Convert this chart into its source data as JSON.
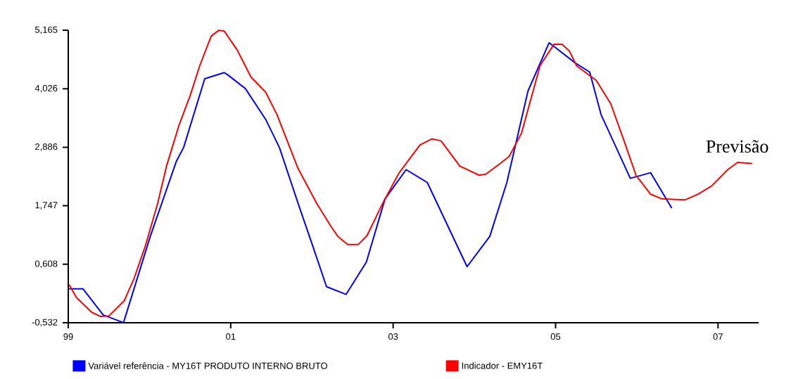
{
  "chart_data": {
    "type": "line",
    "xlim": [
      1999,
      2007.5
    ],
    "ylim": [
      -0.532,
      5.165
    ],
    "xticks": [
      {
        "value": 1999,
        "label": "99"
      },
      {
        "value": 2001,
        "label": "01"
      },
      {
        "value": 2003,
        "label": "03"
      },
      {
        "value": 2005,
        "label": "05"
      },
      {
        "value": 2007,
        "label": "07"
      }
    ],
    "yticks": [
      {
        "value": -0.532,
        "label": "-0,532"
      },
      {
        "value": 0.608,
        "label": "0,608"
      },
      {
        "value": 1.747,
        "label": "1,747"
      },
      {
        "value": 2.886,
        "label": "2,886"
      },
      {
        "value": 4.026,
        "label": "4,026"
      },
      {
        "value": 5.165,
        "label": "5,165"
      }
    ],
    "legend": "bottom",
    "annotations": [
      "Previsão"
    ],
    "series": [
      {
        "name": "Variável referência - MY16T    PRODUTO INTERNO BRUTO",
        "color": "#0000ff",
        "x": [
          1999.01,
          1999.18,
          1999.43,
          1999.68,
          2000.01,
          2000.33,
          2000.42,
          2000.68,
          2000.92,
          2000.96,
          2001.18,
          2001.43,
          2001.6,
          2001.83,
          2002.0,
          2002.18,
          2002.42,
          2002.67,
          2002.9,
          2003.16,
          2003.42,
          2003.91,
          2004.19,
          2004.4,
          2004.66,
          2004.92,
          2004.98,
          2005.24,
          2005.42,
          2005.56,
          2005.68,
          2005.92,
          2006.17,
          2006.43
        ],
        "values": [
          0.13,
          0.13,
          -0.38,
          -0.53,
          1.15,
          2.61,
          2.88,
          4.22,
          4.34,
          4.3,
          4.03,
          3.43,
          2.88,
          1.79,
          1.01,
          0.17,
          0.02,
          0.65,
          1.88,
          2.45,
          2.2,
          0.56,
          1.15,
          2.2,
          3.98,
          4.92,
          4.85,
          4.53,
          4.35,
          3.52,
          3.11,
          2.28,
          2.39,
          1.7
        ]
      },
      {
        "name": "Indicador - EMY16T",
        "color": "#ff0000",
        "x": [
          1999.01,
          1999.1,
          1999.29,
          1999.4,
          1999.5,
          1999.69,
          1999.81,
          1999.95,
          2000.1,
          2000.21,
          2000.36,
          2000.5,
          2000.62,
          2000.76,
          2000.85,
          2000.92,
          2001.08,
          2001.25,
          2001.43,
          2001.57,
          2001.83,
          2002.06,
          2002.24,
          2002.32,
          2002.44,
          2002.57,
          2002.68,
          2002.87,
          2003.07,
          2003.33,
          2003.48,
          2003.59,
          2003.82,
          2004.06,
          2004.14,
          2004.31,
          2004.43,
          2004.58,
          2004.81,
          2004.98,
          2005.08,
          2005.17,
          2005.26,
          2005.5,
          2005.68,
          2005.85,
          2005.99,
          2006.17,
          2006.31,
          2006.59,
          2006.75,
          2006.92,
          2007.12,
          2007.24,
          2007.42
        ],
        "values": [
          0.21,
          -0.04,
          -0.33,
          -0.41,
          -0.4,
          -0.1,
          0.33,
          0.97,
          1.79,
          2.52,
          3.3,
          3.89,
          4.48,
          5.05,
          5.16,
          5.15,
          4.78,
          4.25,
          3.96,
          3.52,
          2.47,
          1.79,
          1.33,
          1.15,
          0.99,
          0.99,
          1.17,
          1.79,
          2.38,
          2.93,
          3.05,
          3.01,
          2.52,
          2.34,
          2.36,
          2.56,
          2.71,
          3.16,
          4.48,
          4.89,
          4.89,
          4.76,
          4.47,
          4.19,
          3.73,
          2.98,
          2.34,
          1.97,
          1.88,
          1.86,
          1.97,
          2.13,
          2.45,
          2.59,
          2.57
        ]
      }
    ]
  }
}
